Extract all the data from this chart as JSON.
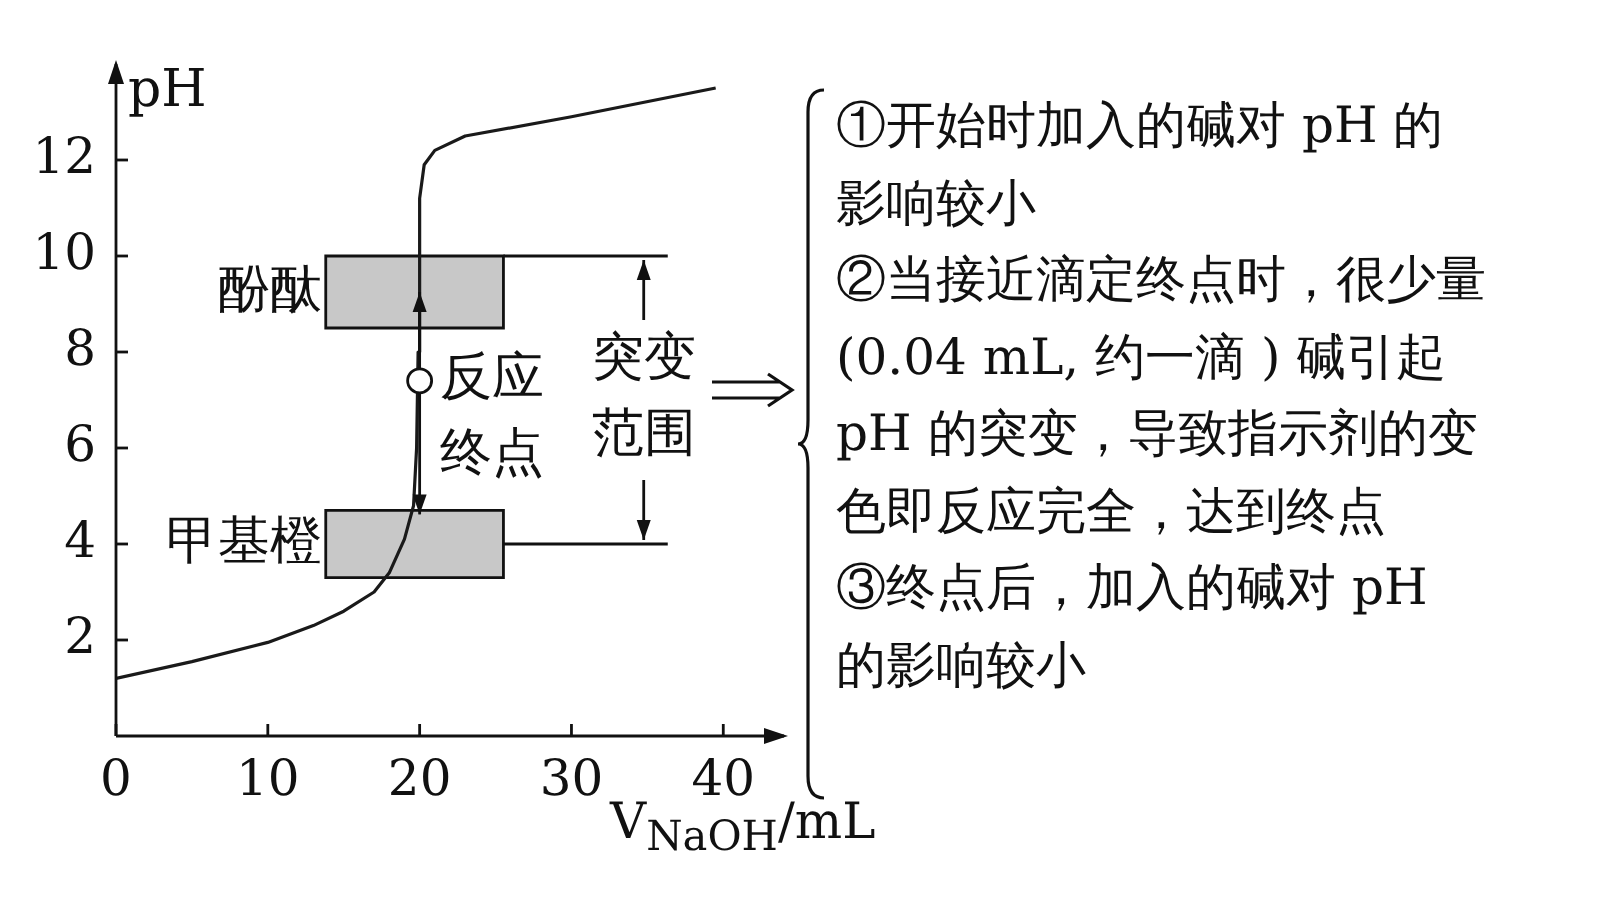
{
  "chart_data": {
    "type": "line",
    "xlabel": "V$_{NaOH}$/mL",
    "ylabel": "pH",
    "x": [
      0,
      5,
      10,
      13,
      15,
      17,
      18,
      19,
      19.6,
      19.8,
      19.9,
      20,
      20.3,
      21,
      23,
      30,
      39.5
    ],
    "series": [
      {
        "color": "#1a1a1a",
        "values": [
          1.2,
          1.55,
          1.95,
          2.3,
          2.6,
          3.0,
          3.4,
          4.1,
          4.8,
          6,
          8,
          11.2,
          11.9,
          12.2,
          12.5,
          12.9,
          13.5
        ]
      }
    ],
    "xlim": [
      0,
      44
    ],
    "ylim": [
      0,
      14
    ],
    "xticks": [
      0,
      10,
      20,
      30,
      40
    ],
    "yticks": [
      2,
      4,
      6,
      8,
      10,
      12
    ],
    "marker": "none",
    "line_style": "solid",
    "bands": [
      {
        "axis": "y",
        "from": 8.5,
        "to": 10,
        "label": "酚酞",
        "color": "#c8c8c8"
      },
      {
        "axis": "y",
        "from": 3.3,
        "to": 4.7,
        "label": "甲基橙",
        "color": "#c8c8c8"
      }
    ],
    "ref_lines": [
      {
        "axis": "y",
        "value": 10,
        "label": "突变范围"
      },
      {
        "axis": "y",
        "value": 4
      }
    ],
    "annotations": [
      {
        "text": "反应终点",
        "x": 20,
        "y": 7.4
      },
      "①开始时加入的碱对 pH 的影响较小",
      "②当接近滴定终点时，很少量 (0.04 mL, 约一滴 ) 碱引起 pH 的突变，导致指示剂的变色即反应完全，达到终点",
      "③终点后，加入的碱对 pH 的影响较小"
    ]
  }
}
